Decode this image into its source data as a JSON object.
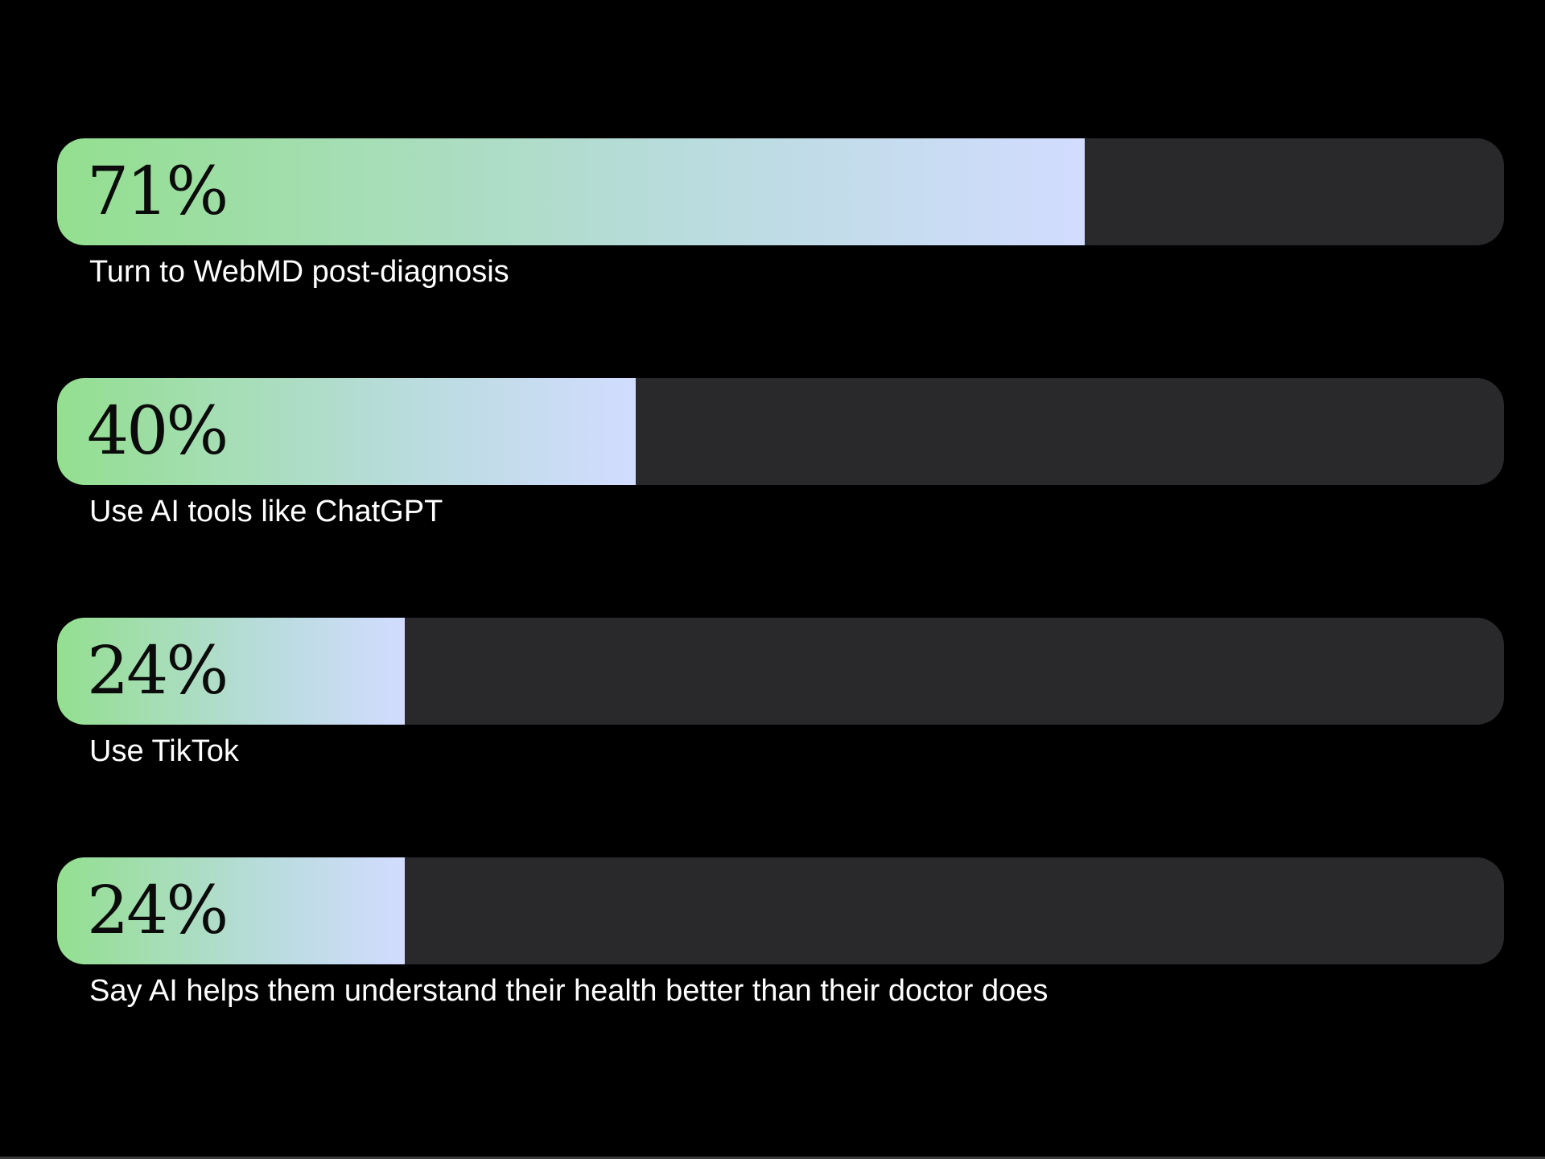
{
  "chart_data": {
    "type": "bar",
    "orientation": "horizontal",
    "categories": [
      "Turn to WebMD post-diagnosis",
      "Use AI tools like ChatGPT",
      "Use TikTok",
      "Say AI helps them understand their health better than their doctor does"
    ],
    "values": [
      71,
      40,
      24,
      24
    ],
    "value_labels": [
      "71%",
      "40%",
      "24%",
      "24%"
    ],
    "xlim": [
      0,
      100
    ],
    "grid": false,
    "legend": "none"
  },
  "colors": {
    "background": "#000000",
    "track": "#29292b",
    "gradient_start": "#93df8f",
    "gradient_mid": "#b8dcdc",
    "gradient_end": "#d2dcff",
    "value_text": "#0b0b0b",
    "label_text": "#ffffff"
  }
}
